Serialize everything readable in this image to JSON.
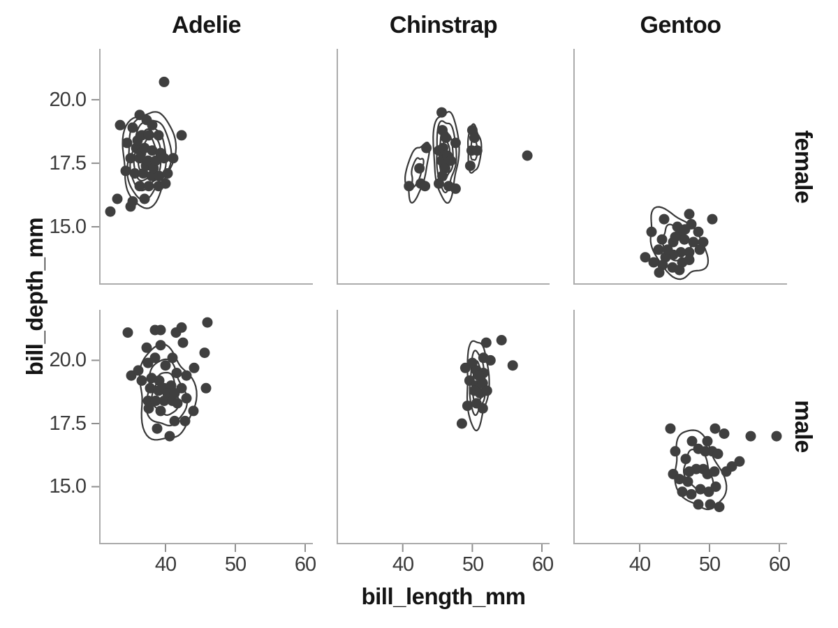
{
  "chart_data": {
    "type": "scatter",
    "title": "",
    "xlabel": "bill_length_mm",
    "ylabel": "bill_depth_mm",
    "col_facets": [
      "Adelie",
      "Chinstrap",
      "Gentoo"
    ],
    "row_facets": [
      "female",
      "male"
    ],
    "xlim": [
      30.6,
      61.1
    ],
    "ylim": [
      12.75,
      22.0
    ],
    "x_tick_values": [
      40,
      50,
      60
    ],
    "y_tick_values": [
      20,
      17.5,
      15
    ],
    "x_tick_labels": [
      "40",
      "50",
      "60"
    ],
    "y_tick_labels": [
      "20.0",
      "17.5",
      "15.0"
    ],
    "grid": false,
    "legend": "none",
    "styles": {
      "point_color": "#3f3f3f",
      "contour_color": "#383838",
      "axis_color": "#ababab",
      "tick_color": "#8f8f8f",
      "tick_label_color": "#3a3a3a",
      "text_color": "#141414",
      "background": "#ffffff",
      "point_radius": 7.5
    },
    "panels": [
      {
        "row": "female",
        "col": "Adelie",
        "points": [
          [
            32.1,
            15.6
          ],
          [
            33.1,
            16.1
          ],
          [
            33.5,
            19.0
          ],
          [
            34.3,
            17.2
          ],
          [
            34.5,
            18.3
          ],
          [
            35.0,
            17.7
          ],
          [
            35.0,
            15.8
          ],
          [
            35.3,
            18.9
          ],
          [
            35.3,
            16.0
          ],
          [
            35.6,
            17.1
          ],
          [
            35.8,
            18.1
          ],
          [
            36.0,
            18.4
          ],
          [
            36.3,
            19.4
          ],
          [
            36.3,
            17.7
          ],
          [
            36.3,
            16.6
          ],
          [
            36.5,
            17.9
          ],
          [
            36.6,
            18.6
          ],
          [
            36.8,
            17.1
          ],
          [
            37.0,
            18.1
          ],
          [
            37.0,
            16.1
          ],
          [
            37.2,
            17.4
          ],
          [
            37.3,
            19.2
          ],
          [
            37.5,
            17.6
          ],
          [
            37.6,
            18.6
          ],
          [
            37.6,
            16.6
          ],
          [
            38.0,
            17.0
          ],
          [
            38.1,
            19.0
          ],
          [
            38.1,
            18.0
          ],
          [
            38.3,
            17.3
          ],
          [
            38.6,
            17.6
          ],
          [
            39.0,
            18.6
          ],
          [
            39.0,
            16.6
          ],
          [
            39.1,
            17.0
          ],
          [
            39.3,
            17.9
          ],
          [
            39.8,
            20.7
          ],
          [
            39.8,
            17.7
          ],
          [
            40.0,
            16.7
          ],
          [
            40.3,
            17.1
          ],
          [
            41.1,
            17.7
          ],
          [
            42.3,
            18.6
          ]
        ],
        "contours": [
          {
            "cx": 37.45,
            "cy": 17.75,
            "rx": 3.7,
            "ry": 1.85,
            "rot": 5,
            "levels": [
              1,
              0.84,
              0.68,
              0.52,
              0.36
            ],
            "w": [
              0.09,
              0.05
            ],
            "ph": [
              0.7,
              2.1
            ]
          }
        ]
      },
      {
        "row": "female",
        "col": "Chinstrap",
        "points": [
          [
            43.4,
            18.1
          ],
          [
            42.4,
            17.3
          ],
          [
            40.9,
            16.6
          ],
          [
            42.6,
            16.7
          ],
          [
            43.2,
            16.6
          ],
          [
            45.6,
            19.5
          ],
          [
            45.7,
            18.8
          ],
          [
            46.2,
            18.5
          ],
          [
            47.6,
            18.3
          ],
          [
            45.2,
            18.0
          ],
          [
            45.8,
            18.1
          ],
          [
            46.0,
            17.8
          ],
          [
            45.6,
            17.6
          ],
          [
            46.1,
            17.3
          ],
          [
            45.7,
            17.0
          ],
          [
            45.2,
            16.7
          ],
          [
            46.6,
            16.6
          ],
          [
            47.6,
            16.5
          ],
          [
            46.4,
            17.8
          ],
          [
            46.9,
            17.6
          ],
          [
            50.0,
            18.8
          ],
          [
            50.3,
            18.5
          ],
          [
            49.9,
            18.0
          ],
          [
            50.7,
            18.0
          ],
          [
            49.7,
            17.4
          ],
          [
            57.9,
            17.8
          ]
        ],
        "contours": [
          {
            "cx": 42.05,
            "cy": 17.2,
            "rx": 1.75,
            "ry": 0.9,
            "rot": 25,
            "levels": [
              1,
              0.5
            ],
            "w": [
              0.12,
              0.06
            ],
            "ph": [
              1.2,
              0.4
            ]
          },
          {
            "cx": 46.2,
            "cy": 17.85,
            "rx": 1.8,
            "ry": 1.75,
            "rot": 4,
            "levels": [
              1,
              0.78,
              0.55,
              0.32
            ],
            "w": [
              0.08,
              0.05
            ],
            "ph": [
              0.2,
              1.9
            ]
          },
          {
            "cx": 50.25,
            "cy": 18.05,
            "rx": 0.95,
            "ry": 0.92,
            "rot": 10,
            "levels": [
              1,
              0.5
            ],
            "w": [
              0.1,
              0.05
            ],
            "ph": [
              2.3,
              1.1
            ]
          }
        ]
      },
      {
        "row": "female",
        "col": "Gentoo",
        "points": [
          [
            43.5,
            15.3
          ],
          [
            47.1,
            15.5
          ],
          [
            50.4,
            15.3
          ],
          [
            41.7,
            14.8
          ],
          [
            43.2,
            14.5
          ],
          [
            45.4,
            15.0
          ],
          [
            47.4,
            15.1
          ],
          [
            48.4,
            14.8
          ],
          [
            45.7,
            14.7
          ],
          [
            44.8,
            14.4
          ],
          [
            46.4,
            14.5
          ],
          [
            47.7,
            14.4
          ],
          [
            49.1,
            14.4
          ],
          [
            48.6,
            14.1
          ],
          [
            47.1,
            14.0
          ],
          [
            45.9,
            14.0
          ],
          [
            44.8,
            13.9
          ],
          [
            43.7,
            13.8
          ],
          [
            42.7,
            14.1
          ],
          [
            40.8,
            13.8
          ],
          [
            42.0,
            13.6
          ],
          [
            43.3,
            13.5
          ],
          [
            44.7,
            13.4
          ],
          [
            46.1,
            13.6
          ],
          [
            47.1,
            13.7
          ],
          [
            42.8,
            13.2
          ],
          [
            45.7,
            13.3
          ],
          [
            44.0,
            14.1
          ],
          [
            46.5,
            14.9
          ],
          [
            45.1,
            14.6
          ]
        ],
        "contours": [
          {
            "cx": 45.3,
            "cy": 14.3,
            "rx": 4.1,
            "ry": 1.2,
            "rot": -8,
            "levels": [
              1,
              0.52
            ],
            "w": [
              0.1,
              0.06
            ],
            "ph": [
              0.9,
              2.6
            ]
          }
        ]
      },
      {
        "row": "male",
        "col": "Adelie",
        "points": [
          [
            34.6,
            21.1
          ],
          [
            38.5,
            21.2
          ],
          [
            39.3,
            21.2
          ],
          [
            41.5,
            21.1
          ],
          [
            42.3,
            21.3
          ],
          [
            46.0,
            21.5
          ],
          [
            37.3,
            20.5
          ],
          [
            39.3,
            20.6
          ],
          [
            42.5,
            20.7
          ],
          [
            45.6,
            20.3
          ],
          [
            44.1,
            19.7
          ],
          [
            35.1,
            19.4
          ],
          [
            36.1,
            19.6
          ],
          [
            37.5,
            19.9
          ],
          [
            38.5,
            20.1
          ],
          [
            40.0,
            19.8
          ],
          [
            41.0,
            20.1
          ],
          [
            41.6,
            19.5
          ],
          [
            43.0,
            19.4
          ],
          [
            45.8,
            18.9
          ],
          [
            36.6,
            19.2
          ],
          [
            38.0,
            19.3
          ],
          [
            39.1,
            19.2
          ],
          [
            39.8,
            18.9
          ],
          [
            40.8,
            19.0
          ],
          [
            42.3,
            18.9
          ],
          [
            37.8,
            18.9
          ],
          [
            39.0,
            18.8
          ],
          [
            40.3,
            18.7
          ],
          [
            41.3,
            18.7
          ],
          [
            43.0,
            18.5
          ],
          [
            37.5,
            18.4
          ],
          [
            38.6,
            18.4
          ],
          [
            39.8,
            18.4
          ],
          [
            41.0,
            18.4
          ],
          [
            41.7,
            18.3
          ],
          [
            37.6,
            18.1
          ],
          [
            39.3,
            18.0
          ],
          [
            44.0,
            18.0
          ],
          [
            42.8,
            17.6
          ],
          [
            41.3,
            17.6
          ],
          [
            38.8,
            17.3
          ],
          [
            40.6,
            17.0
          ]
        ],
        "contours": [
          {
            "cx": 40.0,
            "cy": 18.65,
            "rx": 3.95,
            "ry": 1.85,
            "rot": -3,
            "levels": [
              1,
              0.7,
              0.45
            ],
            "w": [
              0.1,
              0.06
            ],
            "ph": [
              1.6,
              0.3
            ]
          }
        ]
      },
      {
        "row": "male",
        "col": "Chinstrap",
        "points": [
          [
            52.0,
            20.7
          ],
          [
            54.2,
            20.8
          ],
          [
            55.8,
            19.8
          ],
          [
            51.6,
            20.1
          ],
          [
            52.6,
            20.0
          ],
          [
            50.0,
            19.9
          ],
          [
            49.0,
            19.7
          ],
          [
            50.6,
            19.6
          ],
          [
            51.6,
            19.5
          ],
          [
            49.6,
            19.2
          ],
          [
            50.6,
            19.0
          ],
          [
            51.5,
            19.1
          ],
          [
            50.3,
            18.8
          ],
          [
            51.1,
            18.7
          ],
          [
            52.1,
            18.8
          ],
          [
            49.3,
            18.2
          ],
          [
            50.6,
            18.3
          ],
          [
            51.5,
            18.1
          ],
          [
            48.5,
            17.5
          ],
          [
            50.9,
            19.4
          ]
        ],
        "contours": [
          {
            "cx": 50.7,
            "cy": 19.1,
            "rx": 1.55,
            "ry": 1.75,
            "rot": -12,
            "levels": [
              1,
              0.7,
              0.45
            ],
            "w": [
              0.09,
              0.05
            ],
            "ph": [
              0.5,
              1.4
            ]
          }
        ]
      },
      {
        "row": "male",
        "col": "Gentoo",
        "points": [
          [
            44.4,
            17.3
          ],
          [
            50.8,
            17.3
          ],
          [
            52.1,
            17.1
          ],
          [
            55.9,
            17.0
          ],
          [
            59.6,
            17.0
          ],
          [
            49.7,
            16.8
          ],
          [
            47.5,
            16.8
          ],
          [
            45.1,
            16.4
          ],
          [
            46.6,
            16.1
          ],
          [
            48.4,
            16.5
          ],
          [
            49.4,
            16.4
          ],
          [
            50.4,
            16.4
          ],
          [
            51.2,
            16.3
          ],
          [
            53.2,
            15.8
          ],
          [
            54.3,
            16.0
          ],
          [
            52.4,
            15.6
          ],
          [
            44.8,
            15.5
          ],
          [
            45.7,
            15.3
          ],
          [
            46.9,
            15.2
          ],
          [
            48.1,
            15.7
          ],
          [
            49.1,
            15.7
          ],
          [
            49.7,
            15.5
          ],
          [
            50.7,
            15.6
          ],
          [
            47.1,
            15.6
          ],
          [
            46.1,
            14.8
          ],
          [
            47.4,
            14.7
          ],
          [
            48.7,
            14.9
          ],
          [
            49.9,
            14.8
          ],
          [
            50.9,
            15.0
          ],
          [
            48.4,
            14.3
          ],
          [
            50.1,
            14.3
          ],
          [
            51.4,
            14.2
          ]
        ],
        "contours": [
          {
            "cx": 48.4,
            "cy": 15.6,
            "rx": 3.6,
            "ry": 1.45,
            "rot": -10,
            "levels": [
              1,
              0.55
            ],
            "w": [
              0.1,
              0.06
            ],
            "ph": [
              2.0,
              0.8
            ]
          }
        ]
      }
    ]
  }
}
